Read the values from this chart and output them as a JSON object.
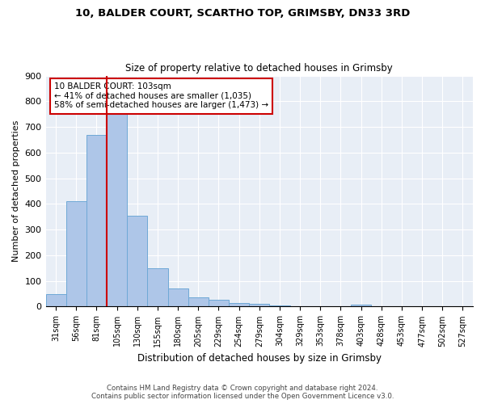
{
  "title_line1": "10, BALDER COURT, SCARTHO TOP, GRIMSBY, DN33 3RD",
  "title_line2": "Size of property relative to detached houses in Grimsby",
  "xlabel": "Distribution of detached houses by size in Grimsby",
  "ylabel": "Number of detached properties",
  "bar_labels": [
    "31sqm",
    "56sqm",
    "81sqm",
    "105sqm",
    "130sqm",
    "155sqm",
    "180sqm",
    "205sqm",
    "229sqm",
    "254sqm",
    "279sqm",
    "304sqm",
    "329sqm",
    "353sqm",
    "378sqm",
    "403sqm",
    "428sqm",
    "453sqm",
    "477sqm",
    "502sqm",
    "527sqm"
  ],
  "bar_values": [
    48,
    410,
    670,
    750,
    353,
    148,
    72,
    35,
    27,
    15,
    10,
    5,
    0,
    0,
    0,
    8,
    0,
    0,
    0,
    0,
    0
  ],
  "bar_color": "#aec6e8",
  "bar_edgecolor": "#6fa8d6",
  "annotation_text": "10 BALDER COURT: 103sqm\n← 41% of detached houses are smaller (1,035)\n58% of semi-detached houses are larger (1,473) →",
  "annotation_box_color": "#ffffff",
  "annotation_box_edgecolor": "#cc0000",
  "subject_line_color": "#cc0000",
  "ylim": [
    0,
    900
  ],
  "yticks": [
    0,
    100,
    200,
    300,
    400,
    500,
    600,
    700,
    800,
    900
  ],
  "bg_color": "#e8eef6",
  "footer_line1": "Contains HM Land Registry data © Crown copyright and database right 2024.",
  "footer_line2": "Contains public sector information licensed under the Open Government Licence v3.0."
}
